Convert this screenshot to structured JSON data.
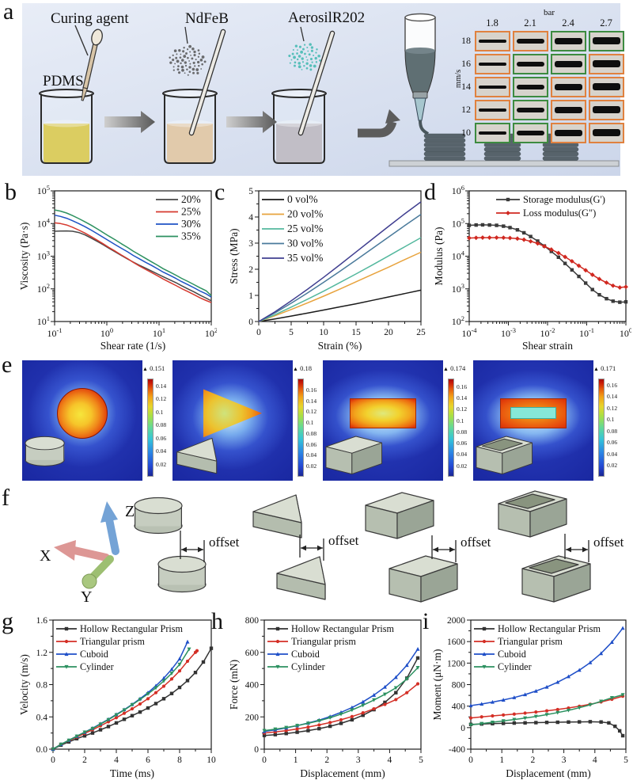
{
  "panel_labels": {
    "a": "a",
    "b": "b",
    "c": "c",
    "d": "d",
    "e": "e",
    "f": "f",
    "g": "g",
    "h": "h",
    "i": "i"
  },
  "panel_a": {
    "labels": {
      "curing_agent": "Curing agent",
      "pdms": "PDMS",
      "ndfeb": "NdFeB",
      "aerosil": "AerosilR202"
    },
    "grid": {
      "unit_top": "bar",
      "columns": [
        "1.8",
        "2.1",
        "2.4",
        "2.7"
      ],
      "unit_left": "mm/s",
      "rows": [
        "18",
        "16",
        "14",
        "12",
        "10"
      ],
      "cell_status": [
        [
          "o",
          "o",
          "g",
          "g"
        ],
        [
          "o",
          "g",
          "g",
          "o"
        ],
        [
          "o",
          "g",
          "o",
          "o"
        ],
        [
          "o",
          "g",
          "o",
          "o"
        ],
        [
          "g",
          "g",
          "o",
          "o"
        ]
      ],
      "status_colors": {
        "o": "#e0813f",
        "g": "#3d8b40"
      }
    }
  },
  "panel_e": {
    "max_marker": "▲",
    "tiles": [
      {
        "shape": "circle",
        "inset": "cylinder",
        "max": "0.151",
        "max_value": 0.151,
        "ticks": [
          "0.14",
          "0.12",
          "0.1",
          "0.08",
          "0.06",
          "0.04",
          "0.02"
        ]
      },
      {
        "shape": "triangle",
        "inset": "triangular-prism",
        "max": "0.18",
        "max_value": 0.18,
        "ticks": [
          "0.16",
          "0.14",
          "0.12",
          "0.1",
          "0.08",
          "0.06",
          "0.04",
          "0.02"
        ]
      },
      {
        "shape": "rect",
        "inset": "cuboid",
        "max": "0.174",
        "max_value": 0.174,
        "ticks": [
          "0.16",
          "0.14",
          "0.12",
          "0.1",
          "0.08",
          "0.06",
          "0.04",
          "0.02"
        ]
      },
      {
        "shape": "hollow",
        "inset": "hollow-rectangular-prism",
        "max": "0.171",
        "max_value": 0.171,
        "ticks": [
          "0.16",
          "0.14",
          "0.12",
          "0.1",
          "0.08",
          "0.06",
          "0.04",
          "0.02"
        ]
      }
    ]
  },
  "panel_f": {
    "axes": {
      "x": "X",
      "y": "Y",
      "z": "Z"
    },
    "pairs": [
      {
        "shape": "cylinder",
        "label": "offset"
      },
      {
        "shape": "triangular-prism",
        "label": "offset"
      },
      {
        "shape": "cuboid",
        "label": "offset"
      },
      {
        "shape": "hollow-rectangular-prism",
        "label": "offset"
      }
    ]
  },
  "chart_data": [
    {
      "id": "b",
      "type": "line",
      "xlabel": "Shear rate (1/s)",
      "ylabel": "Viscosity (Pa·s)",
      "xscale": "log",
      "yscale": "log",
      "xlim": [
        -1,
        2
      ],
      "ylim": [
        1,
        5
      ],
      "xticks_exp": [
        -1,
        0,
        1,
        2
      ],
      "yticks_exp": [
        1,
        2,
        3,
        4,
        5
      ],
      "legend_pos": "tr",
      "x": [
        0.1,
        0.13,
        0.17,
        0.22,
        0.29,
        0.38,
        0.5,
        0.65,
        0.85,
        1.1,
        1.45,
        1.9,
        2.5,
        3.2,
        4.2,
        5.5,
        7.2,
        9.4,
        12,
        16,
        21,
        27,
        36,
        47,
        61,
        80,
        100
      ],
      "series": [
        {
          "name": "20%",
          "color": "#474747",
          "y": [
            5800,
            5900,
            5950,
            5800,
            5300,
            4500,
            3600,
            2850,
            2250,
            1750,
            1350,
            1050,
            820,
            660,
            530,
            430,
            350,
            285,
            235,
            190,
            155,
            125,
            99,
            80,
            64,
            52,
            43
          ]
        },
        {
          "name": "25%",
          "color": "#d63a2f",
          "y": [
            10500,
            10000,
            9000,
            7700,
            6300,
            5100,
            4000,
            3100,
            2400,
            1850,
            1420,
            1090,
            840,
            650,
            500,
            395,
            315,
            250,
            200,
            158,
            127,
            102,
            82,
            66,
            53,
            44,
            38
          ]
        },
        {
          "name": "30%",
          "color": "#1f52c4",
          "y": [
            18000,
            16500,
            14500,
            12200,
            10000,
            8000,
            6300,
            4900,
            3800,
            2950,
            2250,
            1750,
            1360,
            1060,
            830,
            650,
            520,
            410,
            325,
            260,
            208,
            167,
            133,
            107,
            86,
            70,
            56
          ]
        },
        {
          "name": "35%",
          "color": "#2d9160",
          "y": [
            26000,
            24000,
            21000,
            17500,
            14200,
            11300,
            8900,
            6900,
            5300,
            4100,
            3150,
            2400,
            1850,
            1430,
            1110,
            860,
            670,
            525,
            415,
            330,
            262,
            210,
            168,
            134,
            108,
            87,
            62
          ]
        }
      ]
    },
    {
      "id": "c",
      "type": "line",
      "xlabel": "Strain (%)",
      "ylabel": "Stress (MPa)",
      "xlim": [
        0,
        25
      ],
      "ylim": [
        0,
        5
      ],
      "xticks": [
        0,
        5,
        10,
        15,
        20,
        25
      ],
      "yticks": [
        0,
        1,
        2,
        3,
        4,
        5
      ],
      "legend_pos": "tl",
      "x": [
        0,
        2.5,
        5,
        7.5,
        10,
        12.5,
        15,
        17.5,
        20,
        22.5,
        25
      ],
      "series": [
        {
          "name": "0 vol%",
          "color": "#1a1a1a",
          "y": [
            0,
            0.1,
            0.21,
            0.32,
            0.44,
            0.56,
            0.68,
            0.81,
            0.94,
            1.07,
            1.2
          ]
        },
        {
          "name": "20 vol%",
          "color": "#e8a33d",
          "y": [
            0,
            0.22,
            0.46,
            0.71,
            0.97,
            1.24,
            1.52,
            1.8,
            2.08,
            2.37,
            2.65
          ]
        },
        {
          "name": "25 vol%",
          "color": "#54b89e",
          "y": [
            0,
            0.26,
            0.55,
            0.85,
            1.16,
            1.49,
            1.82,
            2.16,
            2.51,
            2.86,
            3.21
          ]
        },
        {
          "name": "30 vol%",
          "color": "#4a7a9b",
          "y": [
            0,
            0.33,
            0.7,
            1.09,
            1.5,
            1.92,
            2.35,
            2.79,
            3.23,
            3.67,
            4.1
          ]
        },
        {
          "name": "35 vol%",
          "color": "#403f90",
          "y": [
            0,
            0.37,
            0.79,
            1.23,
            1.69,
            2.17,
            2.66,
            3.15,
            3.64,
            4.12,
            4.58
          ]
        }
      ]
    },
    {
      "id": "d",
      "type": "line",
      "xlabel": "Shear strain",
      "ylabel": "Modulus (Pa)",
      "xscale": "log",
      "yscale": "log",
      "xlim": [
        -4,
        0
      ],
      "ylim": [
        2,
        6
      ],
      "xticks_exp": [
        -4,
        -3,
        -2,
        -1,
        0
      ],
      "yticks_exp": [
        2,
        3,
        4,
        5,
        6
      ],
      "legend_pos": "tr",
      "x": [
        0.0001,
        0.00015,
        0.00022,
        0.00033,
        0.0005,
        0.00075,
        0.0011,
        0.0017,
        0.0025,
        0.0037,
        0.0056,
        0.0083,
        0.0125,
        0.019,
        0.028,
        0.042,
        0.063,
        0.094,
        0.14,
        0.21,
        0.32,
        0.47,
        0.7,
        1
      ],
      "series": [
        {
          "name": "Storage modulus(G')",
          "color": "#3a3a3a",
          "marker": "square",
          "y": [
            88000,
            90000,
            91000,
            90000,
            88000,
            83000,
            75000,
            64000,
            52000,
            40000,
            29000,
            20500,
            14000,
            9300,
            6000,
            3800,
            2400,
            1500,
            950,
            660,
            500,
            420,
            390,
            400
          ]
        },
        {
          "name": "Loss modulus(G\")",
          "color": "#d02820",
          "marker": "diamond",
          "y": [
            36000,
            36500,
            37000,
            37000,
            37000,
            36800,
            36000,
            34500,
            32000,
            28500,
            24500,
            20000,
            16000,
            12500,
            9500,
            7000,
            5100,
            3700,
            2700,
            2000,
            1550,
            1250,
            1100,
            1150
          ]
        }
      ]
    },
    {
      "id": "g",
      "type": "line",
      "xlabel": "Time (ms)",
      "ylabel": "Velocity (m/s)",
      "xlim": [
        0,
        10
      ],
      "ylim": [
        0,
        1.6
      ],
      "xticks": [
        0,
        2,
        4,
        6,
        8,
        10
      ],
      "yticks": [
        0,
        0.4,
        0.8,
        1.2,
        1.6
      ],
      "ytickfmt": "1dp",
      "legend_pos": "tl",
      "series": [
        {
          "name": "Hollow Rectangular Prism",
          "color": "#333333",
          "marker": "square",
          "x": [
            0,
            0.5,
            1,
            1.5,
            2,
            2.5,
            3,
            3.5,
            4,
            4.5,
            5,
            5.5,
            6,
            6.5,
            7,
            7.5,
            8,
            8.5,
            9,
            9.5,
            10
          ],
          "y": [
            0,
            0.05,
            0.09,
            0.13,
            0.165,
            0.2,
            0.24,
            0.28,
            0.325,
            0.37,
            0.415,
            0.46,
            0.51,
            0.565,
            0.625,
            0.69,
            0.765,
            0.85,
            0.95,
            1.08,
            1.25
          ]
        },
        {
          "name": "Triangular prism",
          "color": "#d42f26",
          "marker": "circle",
          "x": [
            0,
            0.5,
            1,
            1.5,
            2,
            2.5,
            3,
            3.5,
            4,
            4.5,
            5,
            5.5,
            6,
            6.5,
            7,
            7.5,
            8,
            8.5,
            9,
            9.1
          ],
          "y": [
            0,
            0.06,
            0.105,
            0.15,
            0.195,
            0.24,
            0.29,
            0.34,
            0.39,
            0.445,
            0.5,
            0.56,
            0.625,
            0.7,
            0.78,
            0.87,
            0.97,
            1.09,
            1.2,
            1.22
          ]
        },
        {
          "name": "Cuboid",
          "color": "#1f4fc8",
          "marker": "triangle",
          "x": [
            0,
            0.5,
            1,
            1.5,
            2,
            2.5,
            3,
            3.5,
            4,
            4.5,
            5,
            5.5,
            6,
            6.5,
            7,
            7.5,
            8,
            8.5
          ],
          "y": [
            0,
            0.06,
            0.11,
            0.16,
            0.21,
            0.26,
            0.315,
            0.37,
            0.43,
            0.49,
            0.555,
            0.625,
            0.7,
            0.785,
            0.88,
            0.99,
            1.12,
            1.33
          ]
        },
        {
          "name": "Cylinder",
          "color": "#2c9160",
          "marker": "triangle-down",
          "x": [
            0,
            0.5,
            1,
            1.5,
            2,
            2.5,
            3,
            3.5,
            4,
            4.5,
            5,
            5.5,
            6,
            6.5,
            7,
            7.5,
            8,
            8.6
          ],
          "y": [
            0,
            0.06,
            0.11,
            0.16,
            0.21,
            0.255,
            0.31,
            0.365,
            0.425,
            0.485,
            0.55,
            0.615,
            0.685,
            0.76,
            0.845,
            0.94,
            1.05,
            1.24
          ]
        }
      ]
    },
    {
      "id": "h",
      "type": "line",
      "xlabel": "Displacement (mm)",
      "ylabel": "Force (mN)",
      "xlim": [
        0,
        5
      ],
      "ylim": [
        0,
        800
      ],
      "xticks": [
        0,
        1,
        2,
        3,
        4,
        5
      ],
      "yticks": [
        0,
        200,
        400,
        600,
        800
      ],
      "legend_pos": "tl",
      "x": [
        0,
        0.35,
        0.7,
        1.05,
        1.4,
        1.75,
        2.1,
        2.45,
        2.8,
        3.15,
        3.5,
        3.85,
        4.2,
        4.55,
        4.9
      ],
      "series": [
        {
          "name": "Hollow Rectangular Prism",
          "color": "#333333",
          "marker": "square",
          "y": [
            85,
            90,
            97,
            105,
            115,
            127,
            142,
            160,
            182,
            210,
            245,
            290,
            350,
            440,
            565
          ]
        },
        {
          "name": "Triangular prism",
          "color": "#d42f26",
          "marker": "circle",
          "y": [
            100,
            107,
            115,
            125,
            137,
            150,
            165,
            182,
            202,
            225,
            250,
            277,
            307,
            350,
            405
          ]
        },
        {
          "name": "Cuboid",
          "color": "#1f4fc8",
          "marker": "triangle",
          "y": [
            110,
            120,
            132,
            146,
            162,
            180,
            202,
            228,
            258,
            293,
            335,
            385,
            445,
            520,
            620
          ]
        },
        {
          "name": "Cylinder",
          "color": "#2c9160",
          "marker": "triangle-down",
          "y": [
            115,
            124,
            134,
            146,
            160,
            176,
            195,
            217,
            243,
            272,
            305,
            340,
            380,
            435,
            505
          ]
        }
      ]
    },
    {
      "id": "i",
      "type": "line",
      "xlabel": "Displacement (mm)",
      "ylabel": "Moment (μN·m)",
      "xlim": [
        0,
        5
      ],
      "ylim": [
        -400,
        2000
      ],
      "xticks": [
        0,
        1,
        2,
        3,
        4,
        5
      ],
      "yticks": [
        -400,
        0,
        400,
        800,
        1200,
        1600,
        2000
      ],
      "legend_pos": "tl",
      "x": [
        0,
        0.35,
        0.7,
        1.05,
        1.4,
        1.75,
        2.1,
        2.45,
        2.8,
        3.15,
        3.5,
        3.85,
        4.2,
        4.55,
        4.9
      ],
      "series": [
        {
          "name": "Hollow Rectangular Prism",
          "color": "#333333",
          "marker": "square",
          "x": [
            0,
            0.35,
            0.7,
            1.05,
            1.4,
            1.75,
            2.1,
            2.45,
            2.8,
            3.15,
            3.5,
            3.85,
            4.2,
            4.45,
            4.65,
            4.8,
            4.9
          ],
          "y": [
            60,
            68,
            74,
            80,
            85,
            89,
            93,
            97,
            100,
            104,
            107,
            110,
            105,
            88,
            25,
            -60,
            -150
          ]
        },
        {
          "name": "Triangular prism",
          "color": "#d42f26",
          "marker": "circle",
          "y": [
            180,
            200,
            218,
            235,
            252,
            270,
            290,
            312,
            337,
            365,
            398,
            435,
            478,
            528,
            585
          ]
        },
        {
          "name": "Cuboid",
          "color": "#1f4fc8",
          "marker": "triangle",
          "y": [
            410,
            440,
            475,
            515,
            560,
            615,
            680,
            755,
            845,
            950,
            1070,
            1210,
            1380,
            1590,
            1850
          ]
        },
        {
          "name": "Cylinder",
          "color": "#2c9160",
          "marker": "triangle-down",
          "y": [
            50,
            75,
            100,
            125,
            150,
            178,
            208,
            242,
            280,
            322,
            370,
            425,
            490,
            555,
            610
          ]
        }
      ]
    }
  ]
}
